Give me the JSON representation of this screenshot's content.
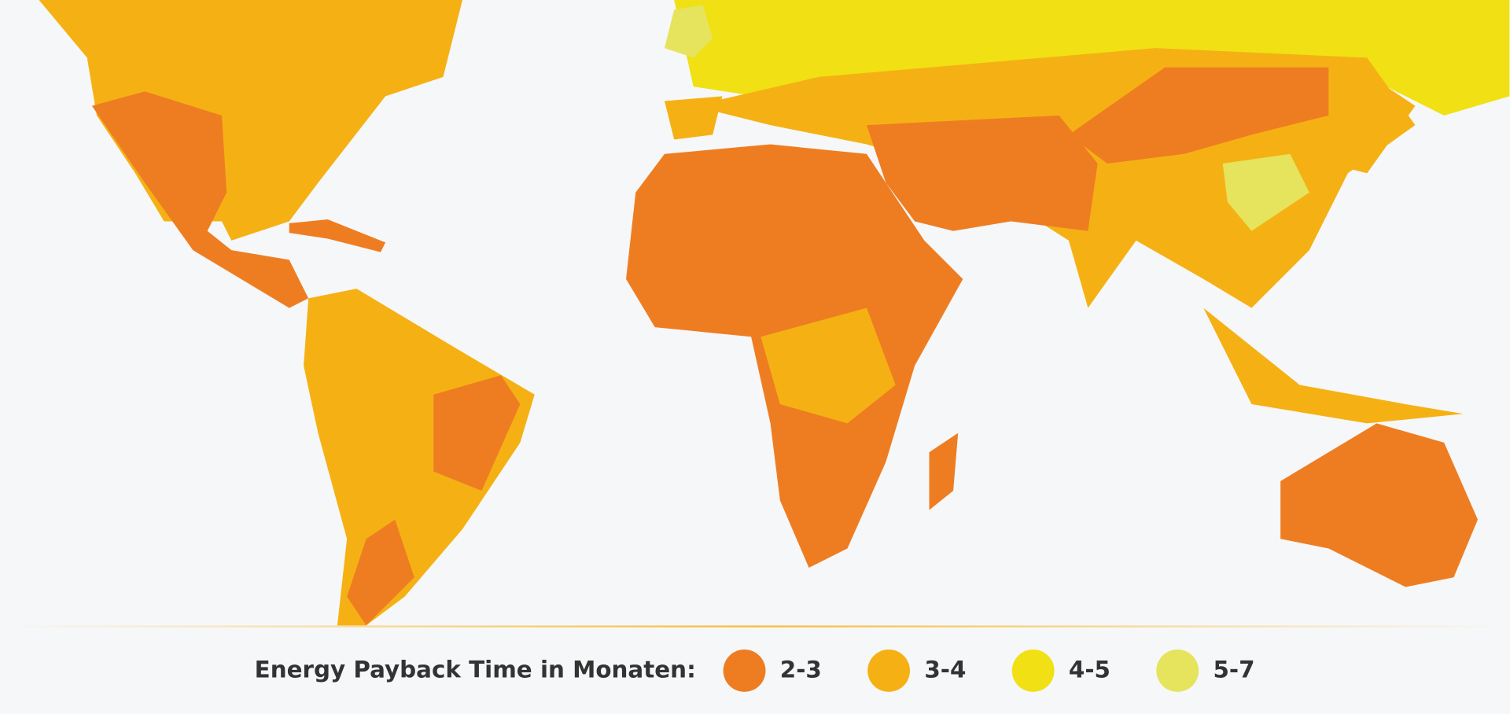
{
  "legend": {
    "title": "Energy Payback Time in Monaten:",
    "items": [
      {
        "label": "2-3",
        "color": "#ee7d22"
      },
      {
        "label": "3-4",
        "color": "#f5b114"
      },
      {
        "label": "4-5",
        "color": "#f0e014"
      },
      {
        "label": "5-7",
        "color": "#e6e35c"
      }
    ]
  }
}
